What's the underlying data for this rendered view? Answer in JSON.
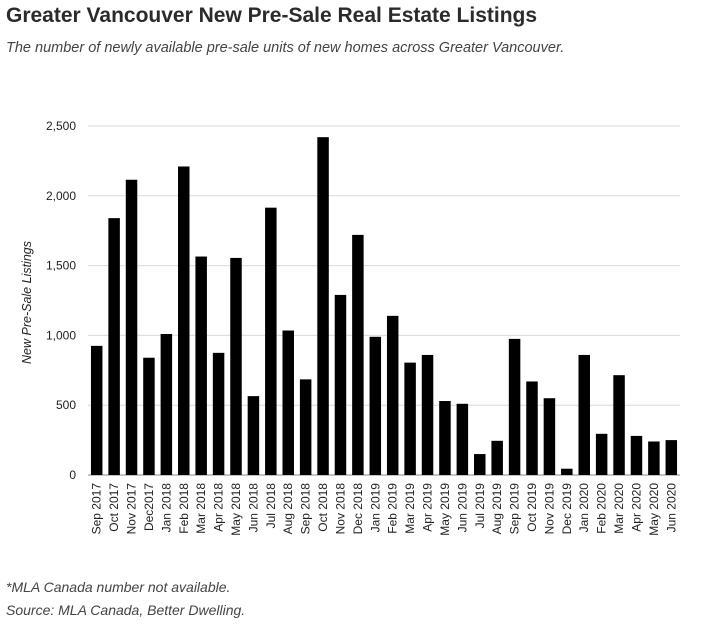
{
  "title": "Greater Vancouver New Pre-Sale Real Estate Listings",
  "subtitle": "The number of newly available pre-sale units of new homes across Greater Vancouver.",
  "footnotes": {
    "note": "*MLA Canada number not available.",
    "source": "Source: MLA Canada, Better Dwelling."
  },
  "colors": {
    "bar": "#000000",
    "grid": "#d9d9d9",
    "axis": "#888888"
  },
  "chart_data": {
    "type": "bar",
    "title": "Greater Vancouver New Pre-Sale Real Estate Listings",
    "xlabel": "",
    "ylabel": "New Pre-Sale Listings",
    "ylim": [
      0,
      2500
    ],
    "yticks": [
      0,
      500,
      1000,
      1500,
      2000,
      2500
    ],
    "ytick_labels": [
      "0",
      "500",
      "1,000",
      "1,500",
      "2,000",
      "2,500"
    ],
    "grid": true,
    "legend": "none",
    "categories": [
      "Sep 2017",
      "Oct 2017",
      "Nov 2017",
      "Dec2017",
      "Jan 2018",
      "Feb 2018",
      "Mar 2018",
      "Apr 2018",
      "May 2018",
      "Jun 2018",
      "Jul 2018",
      "Aug 2018",
      "Sep 2018",
      "Oct 2018",
      "Nov 2018",
      "Dec 2018",
      "Jan 2019",
      "Feb 2019",
      "Mar 2019",
      "Apr 2019",
      "May 2019",
      "Jun 2019",
      "Jul 2019",
      "Aug 2019",
      "Sep 2019",
      "Oct 2019",
      "Nov 2019",
      "Dec 2019",
      "Jan 2020",
      "Feb 2020",
      "Mar 2020",
      "Apr 2020",
      "May 2020",
      "Jun 2020"
    ],
    "values": [
      925,
      1840,
      2115,
      840,
      1010,
      2210,
      1565,
      875,
      1555,
      565,
      1915,
      1035,
      685,
      2420,
      1290,
      1720,
      990,
      1140,
      805,
      860,
      530,
      510,
      150,
      245,
      975,
      670,
      550,
      45,
      860,
      295,
      715,
      280,
      240,
      250
    ]
  }
}
